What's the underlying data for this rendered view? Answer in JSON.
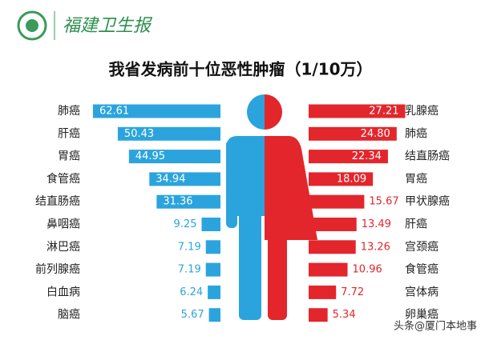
{
  "header": {
    "brand": "福建卫生报"
  },
  "chart_data": [
    {
      "type": "bar",
      "title": "我省发病前十位恶性肿瘤（1/10万）",
      "categories": [
        "肺癌",
        "肝癌",
        "胃癌",
        "食管癌",
        "结直肠癌",
        "鼻咽癌",
        "淋巴癌",
        "前列腺癌",
        "白血病",
        "脑癌"
      ],
      "values": [
        62.61,
        50.43,
        44.95,
        34.94,
        31.36,
        9.25,
        7.19,
        7.19,
        6.24,
        5.67
      ],
      "color": "#2ba4dd",
      "xlim": [
        0,
        63
      ]
    },
    {
      "type": "bar",
      "categories": [
        "乳腺癌",
        "肺癌",
        "结直肠癌",
        "胃癌",
        "甲状腺癌",
        "肝癌",
        "宫颈癌",
        "食管癌",
        "宫体病",
        "卵巢癌"
      ],
      "values": [
        27.21,
        24.8,
        22.34,
        18.09,
        15.67,
        13.49,
        13.26,
        10.96,
        7.72,
        5.34
      ],
      "value_labels": [
        "27.21",
        "24.80",
        "22.34",
        "18.09",
        "15.67",
        "13.49",
        "13.26",
        "10.96",
        "7.72",
        "5.34"
      ],
      "color": "#e3262b",
      "xlim": [
        0,
        28
      ]
    }
  ],
  "watermark": "头条@厦门本地事"
}
